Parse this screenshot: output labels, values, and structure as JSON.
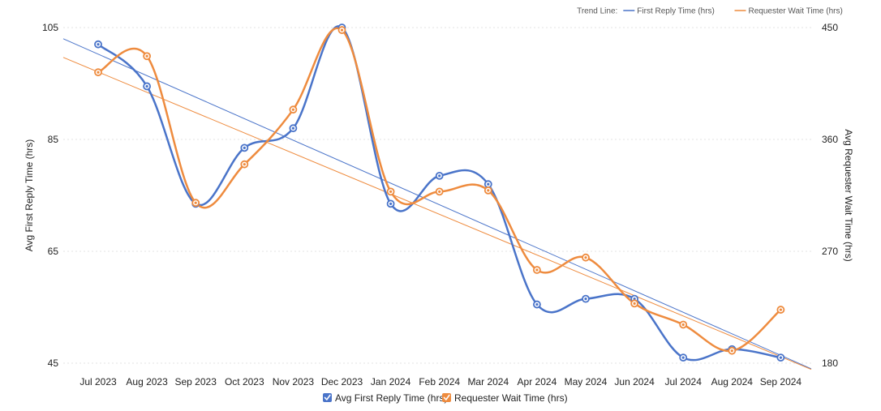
{
  "chart_data": {
    "type": "line",
    "categories": [
      "Jul 2023",
      "Aug 2023",
      "Sep 2023",
      "Oct 2023",
      "Nov 2023",
      "Dec 2023",
      "Jan 2024",
      "Feb 2024",
      "Mar 2024",
      "Apr 2024",
      "May 2024",
      "Jun 2024",
      "Jul 2024",
      "Aug 2024",
      "Sep 2024"
    ],
    "series": [
      {
        "name": "Avg First Reply Time (hrs)",
        "axis": "left",
        "color": "#4a74c9",
        "values": [
          102,
          94.5,
          73.5,
          83.5,
          87,
          105,
          73.5,
          78.5,
          77,
          55.5,
          56.5,
          56.5,
          46,
          47.5,
          46
        ]
      },
      {
        "name": "Requester Wait Time (hrs)",
        "axis": "right",
        "color": "#ee8b3e",
        "values": [
          414,
          427,
          309,
          340,
          384,
          448,
          318,
          318,
          319,
          255,
          265,
          228,
          211,
          190,
          223
        ]
      }
    ],
    "left_axis": {
      "label": "Avg First Reply Time (hrs)",
      "min": 45,
      "max": 105,
      "ticks": [
        "45",
        "65",
        "85",
        "105"
      ]
    },
    "right_axis": {
      "label": "Avg Requester Wait Time (hrs)",
      "min": 180,
      "max": 450,
      "ticks": [
        "180",
        "270",
        "360",
        "450"
      ]
    },
    "trend_lines": {
      "title": "Trend Line:",
      "items": [
        {
          "name": "First Reply Time (hrs)",
          "color": "#4a74c9",
          "start": 103,
          "end": 44
        },
        {
          "name": "Requester Wait Time (hrs)",
          "color": "#ee8b3e",
          "start": 426,
          "end": 175
        }
      ]
    },
    "legend": {
      "placement": "bottom-center",
      "items": [
        {
          "label": "Avg First Reply Time (hrs)",
          "color": "#4a74c9",
          "checked": true
        },
        {
          "label": "Requester Wait Time (hrs)",
          "color": "#ee8b3e",
          "checked": true
        }
      ]
    },
    "grid": "horizontal-dotted"
  }
}
